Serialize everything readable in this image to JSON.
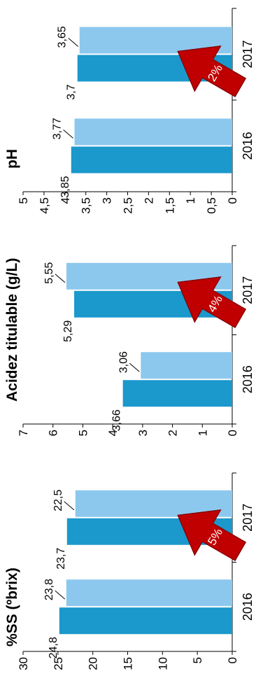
{
  "colors": {
    "series_dark": "#1B98CC",
    "series_light": "#8CC8EE",
    "arrow_fill": "#C00000",
    "arrow_stroke": "#8B0000",
    "axis": "#000000",
    "leader": "#000000"
  },
  "chart_data": [
    {
      "type": "bar",
      "title": "%SS (ºbrix)",
      "categories": [
        "2016",
        "2017"
      ],
      "series": [
        {
          "values": [
            24.8,
            23.7
          ],
          "labels": [
            "24,8",
            "23,7"
          ],
          "color": "#1B98CC"
        },
        {
          "values": [
            23.8,
            22.5
          ],
          "labels": [
            "23,8",
            "22,5"
          ],
          "color": "#8CC8EE"
        }
      ],
      "ylim": [
        0,
        30
      ],
      "yticks": [
        0,
        5,
        10,
        15,
        20,
        25,
        30
      ],
      "yticklabels": [
        "0",
        "5",
        "10",
        "15",
        "20",
        "25",
        "30"
      ],
      "annotation": "5%",
      "grid": false
    },
    {
      "type": "bar",
      "title": "Acidez titulable (g/L)",
      "categories": [
        "2016",
        "2017"
      ],
      "series": [
        {
          "values": [
            3.66,
            5.29
          ],
          "labels": [
            "3,66",
            "5,29"
          ],
          "color": "#1B98CC"
        },
        {
          "values": [
            3.06,
            5.55
          ],
          "labels": [
            "3,06",
            "5,55"
          ],
          "color": "#8CC8EE"
        }
      ],
      "ylim": [
        0,
        7
      ],
      "yticks": [
        0,
        1,
        2,
        3,
        4,
        5,
        6,
        7
      ],
      "yticklabels": [
        "0",
        "1",
        "2",
        "3",
        "4",
        "5",
        "6",
        "7"
      ],
      "annotation": "4%",
      "grid": false
    },
    {
      "type": "bar",
      "title": "pH",
      "categories": [
        "2016",
        "2017"
      ],
      "series": [
        {
          "values": [
            3.85,
            3.7
          ],
          "labels": [
            "3,85",
            "3,7"
          ],
          "color": "#1B98CC"
        },
        {
          "values": [
            3.77,
            3.65
          ],
          "labels": [
            "3,77",
            "3,65"
          ],
          "color": "#8CC8EE"
        }
      ],
      "ylim": [
        0,
        5
      ],
      "yticks": [
        0,
        0.5,
        1,
        1.5,
        2,
        2.5,
        3,
        3.5,
        4,
        4.5,
        5
      ],
      "yticklabels": [
        "0",
        "0,5",
        "1",
        "1,5",
        "2",
        "2,5",
        "3",
        "3,5",
        "4",
        "4,5",
        "5"
      ],
      "annotation": "2%",
      "grid": false
    }
  ]
}
